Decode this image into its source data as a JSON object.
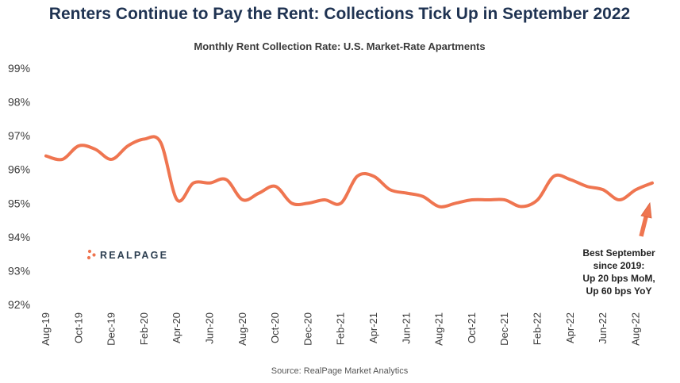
{
  "title": "Renters Continue to Pay the Rent: Collections Tick Up in September 2022",
  "source": "Source: RealPage Market Analytics",
  "logo": {
    "text": "REALPAGE"
  },
  "annotation": {
    "lines": [
      "Best September",
      "since 2019:",
      "Up 20 bps MoM,",
      "Up 60 bps YoY"
    ]
  },
  "colors": {
    "line": "#ef7550",
    "arrow": "#ef7550",
    "title": "#1f3352",
    "logo_dots": "#ef7550"
  },
  "chart_data": {
    "type": "line",
    "title": "Monthly Rent Collection Rate: U.S. Market-Rate Apartments",
    "xlabel": "",
    "ylabel": "",
    "ylim": [
      92,
      99
    ],
    "yticks": [
      92,
      93,
      94,
      95,
      96,
      97,
      98,
      99
    ],
    "ytick_labels": [
      "92%",
      "93%",
      "94%",
      "95%",
      "96%",
      "97%",
      "98%",
      "99%"
    ],
    "grid": false,
    "legend": "none",
    "x": [
      "Aug-19",
      "Sep-19",
      "Oct-19",
      "Nov-19",
      "Dec-19",
      "Jan-20",
      "Feb-20",
      "Mar-20",
      "Apr-20",
      "May-20",
      "Jun-20",
      "Jul-20",
      "Aug-20",
      "Sep-20",
      "Oct-20",
      "Nov-20",
      "Dec-20",
      "Jan-21",
      "Feb-21",
      "Mar-21",
      "Apr-21",
      "May-21",
      "Jun-21",
      "Jul-21",
      "Aug-21",
      "Sep-21",
      "Oct-21",
      "Nov-21",
      "Dec-21",
      "Jan-22",
      "Feb-22",
      "Mar-22",
      "Apr-22",
      "May-22",
      "Jun-22",
      "Jul-22",
      "Aug-22",
      "Sep-22"
    ],
    "xtick_labels": [
      "Aug-19",
      "Oct-19",
      "Dec-19",
      "Feb-20",
      "Apr-20",
      "Jun-20",
      "Aug-20",
      "Oct-20",
      "Dec-20",
      "Feb-21",
      "Apr-21",
      "Jun-21",
      "Aug-21",
      "Oct-21",
      "Dec-21",
      "Feb-22",
      "Apr-22",
      "Jun-22",
      "Aug-22"
    ],
    "series": [
      {
        "values": [
          96.4,
          96.3,
          96.7,
          96.6,
          96.3,
          96.7,
          96.9,
          96.8,
          95.1,
          95.6,
          95.6,
          95.7,
          95.1,
          95.3,
          95.5,
          95.0,
          95.0,
          95.1,
          95.0,
          95.8,
          95.8,
          95.4,
          95.3,
          95.2,
          94.9,
          95.0,
          95.1,
          95.1,
          95.1,
          94.9,
          95.1,
          95.8,
          95.7,
          95.5,
          95.4,
          95.1,
          95.4,
          95.6
        ]
      }
    ]
  }
}
